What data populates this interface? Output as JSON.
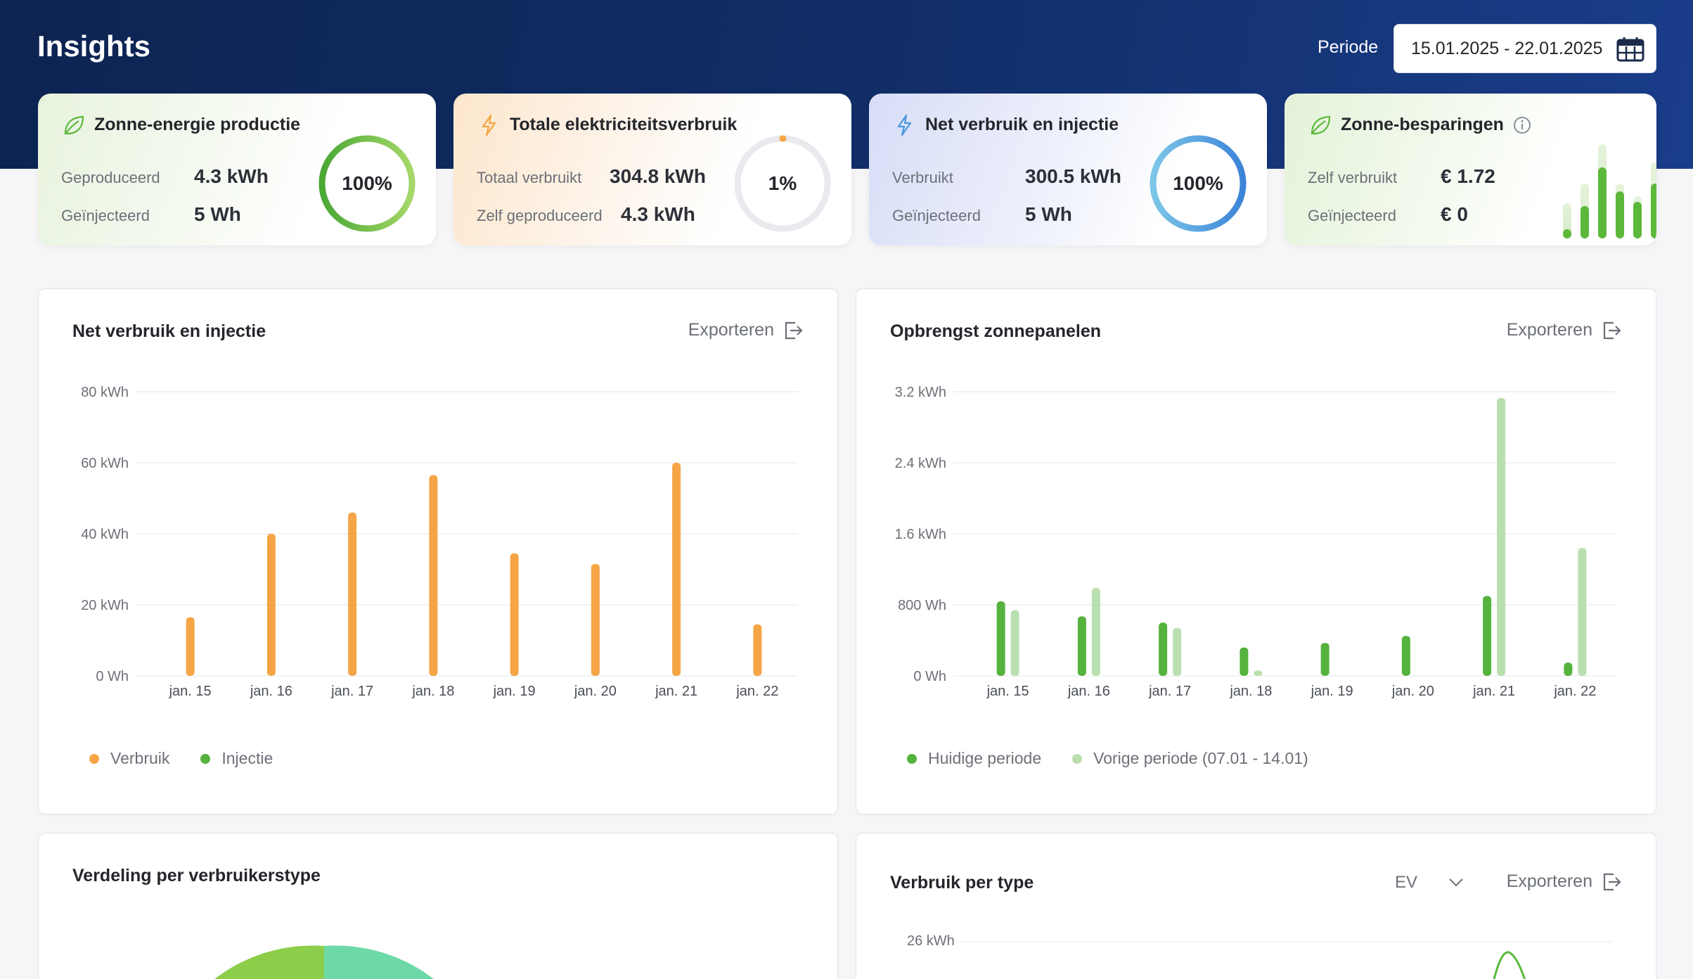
{
  "header": {
    "title": "Insights",
    "period_label": "Periode",
    "period_value": "15.01.2025 - 22.01.2025"
  },
  "kpis": [
    {
      "title": "Zonne-energie productie",
      "rows": [
        {
          "label": "Geproduceerd",
          "value": "4.3 kWh"
        },
        {
          "label": "Geïnjecteerd",
          "value": "5 Wh"
        }
      ],
      "ring_text": "100%",
      "ring_fraction": 1.0,
      "ring_color": "#5cb83a"
    },
    {
      "title": "Totale elektriciteitsverbruik",
      "rows": [
        {
          "label": "Totaal verbruikt",
          "value": "304.8 kWh"
        },
        {
          "label": "Zelf geproduceerd",
          "value": "4.3 kWh"
        }
      ],
      "ring_text": "1%",
      "ring_fraction": 0.01,
      "ring_color": "#f5a545"
    },
    {
      "title": "Net verbruik en injectie",
      "rows": [
        {
          "label": "Verbruikt",
          "value": "300.5 kWh"
        },
        {
          "label": "Geïnjecteerd",
          "value": "5 Wh"
        }
      ],
      "ring_text": "100%",
      "ring_fraction": 1.0,
      "ring_color": "#4a97dc"
    },
    {
      "title": "Zonne-besparingen",
      "rows": [
        {
          "label": "Zelf verbruikt",
          "value": "€ 1.72"
        },
        {
          "label": "Geïnjecteerd",
          "value": "€ 0"
        }
      ]
    }
  ],
  "panels": {
    "net": {
      "title": "Net verbruik en injectie",
      "export_label": "Exporteren"
    },
    "solar": {
      "title": "Opbrengst zonnepanelen",
      "export_label": "Exporteren"
    },
    "distribution": {
      "title": "Verdeling per verbruikerstype"
    },
    "per_type": {
      "title": "Verbruik per type",
      "select_value": "EV",
      "export_label": "Exporteren",
      "y_tick_top": "26 kWh"
    }
  },
  "chart_data": [
    {
      "type": "bar",
      "title": "Net verbruik en injectie",
      "categories": [
        "jan. 15",
        "jan. 16",
        "jan. 17",
        "jan. 18",
        "jan. 19",
        "jan. 20",
        "jan. 21",
        "jan. 22"
      ],
      "y_ticks": [
        "0 Wh",
        "20 kWh",
        "40 kWh",
        "60 kWh",
        "80 kWh"
      ],
      "ylim": [
        0,
        80
      ],
      "grid": true,
      "legend_position": "bottom-left",
      "series": [
        {
          "name": "Verbruik",
          "color": "#f5a545",
          "values": [
            16.5,
            40,
            46,
            56.5,
            34.5,
            31.5,
            60,
            14.5
          ]
        },
        {
          "name": "Injectie",
          "color": "#55b23c",
          "values": [
            0,
            0,
            0,
            0,
            0,
            0,
            0,
            0
          ]
        }
      ]
    },
    {
      "type": "bar",
      "title": "Opbrengst zonnepanelen",
      "categories": [
        "jan. 15",
        "jan. 16",
        "jan. 17",
        "jan. 18",
        "jan. 19",
        "jan. 20",
        "jan. 21",
        "jan. 22"
      ],
      "y_ticks": [
        "0 Wh",
        "800 Wh",
        "1.6 kWh",
        "2.4 kWh",
        "3.2 kWh"
      ],
      "ylim": [
        0,
        3200
      ],
      "grid": true,
      "legend_position": "bottom-left",
      "series": [
        {
          "name": "Huidige periode",
          "color": "#55b23c",
          "values": [
            840,
            670,
            600,
            320,
            370,
            450,
            900,
            150
          ]
        },
        {
          "name": "Vorige periode (07.01 - 14.01)",
          "color": "#b9dfae",
          "values": [
            740,
            990,
            540,
            60,
            0,
            0,
            3130,
            1440
          ]
        }
      ]
    }
  ]
}
